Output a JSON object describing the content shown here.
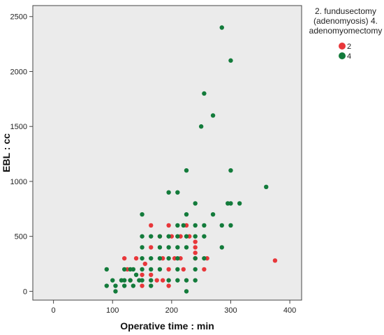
{
  "chart_data": {
    "type": "scatter",
    "xlabel": "Operative time : min",
    "ylabel": "EBL : cc",
    "xlim": [
      -35,
      420
    ],
    "ylim": [
      -80,
      2600
    ],
    "x_ticks": [
      "0",
      "100",
      "200",
      "300",
      "400"
    ],
    "y_ticks": [
      "0",
      "500",
      "1000",
      "1500",
      "2000",
      "2500"
    ],
    "legend": {
      "title": [
        "2. fundusectomy",
        "(adenomyosis) 4.",
        "adenomyomectomy"
      ],
      "position": "top-right outside plot"
    },
    "plot_background": "#ebebeb",
    "grid": false,
    "series": [
      {
        "name": "2",
        "color": "#e8373a",
        "points": [
          [
            120,
            300
          ],
          [
            125,
            200
          ],
          [
            130,
            100
          ],
          [
            140,
            300
          ],
          [
            150,
            50
          ],
          [
            150,
            150
          ],
          [
            155,
            250
          ],
          [
            165,
            600
          ],
          [
            165,
            400
          ],
          [
            165,
            150
          ],
          [
            175,
            100
          ],
          [
            180,
            500
          ],
          [
            185,
            100
          ],
          [
            185,
            300
          ],
          [
            195,
            50
          ],
          [
            195,
            200
          ],
          [
            195,
            600
          ],
          [
            200,
            500
          ],
          [
            205,
            300
          ],
          [
            215,
            300
          ],
          [
            215,
            500
          ],
          [
            220,
            200
          ],
          [
            225,
            600
          ],
          [
            230,
            500
          ],
          [
            240,
            450
          ],
          [
            240,
            400
          ],
          [
            240,
            350
          ],
          [
            240,
            300
          ],
          [
            255,
            200
          ],
          [
            260,
            300
          ],
          [
            375,
            280
          ]
        ]
      },
      {
        "name": "4",
        "color": "#137b3b",
        "points": [
          [
            90,
            200
          ],
          [
            90,
            50
          ],
          [
            100,
            100
          ],
          [
            105,
            50
          ],
          [
            105,
            0
          ],
          [
            115,
            100
          ],
          [
            120,
            100
          ],
          [
            120,
            200
          ],
          [
            120,
            50
          ],
          [
            130,
            200
          ],
          [
            130,
            100
          ],
          [
            135,
            50
          ],
          [
            135,
            200
          ],
          [
            140,
            150
          ],
          [
            145,
            100
          ],
          [
            150,
            700
          ],
          [
            150,
            500
          ],
          [
            150,
            400
          ],
          [
            150,
            300
          ],
          [
            150,
            200
          ],
          [
            150,
            100
          ],
          [
            165,
            500
          ],
          [
            165,
            300
          ],
          [
            165,
            200
          ],
          [
            165,
            100
          ],
          [
            165,
            50
          ],
          [
            180,
            500
          ],
          [
            180,
            400
          ],
          [
            180,
            300
          ],
          [
            180,
            200
          ],
          [
            195,
            900
          ],
          [
            195,
            500
          ],
          [
            195,
            400
          ],
          [
            195,
            300
          ],
          [
            195,
            100
          ],
          [
            210,
            900
          ],
          [
            210,
            600
          ],
          [
            210,
            500
          ],
          [
            210,
            400
          ],
          [
            210,
            300
          ],
          [
            210,
            200
          ],
          [
            210,
            100
          ],
          [
            220,
            600
          ],
          [
            225,
            1100
          ],
          [
            225,
            700
          ],
          [
            225,
            500
          ],
          [
            225,
            400
          ],
          [
            225,
            100
          ],
          [
            225,
            0
          ],
          [
            240,
            800
          ],
          [
            240,
            600
          ],
          [
            240,
            500
          ],
          [
            240,
            300
          ],
          [
            240,
            200
          ],
          [
            240,
            100
          ],
          [
            250,
            1500
          ],
          [
            255,
            1800
          ],
          [
            255,
            600
          ],
          [
            255,
            500
          ],
          [
            255,
            300
          ],
          [
            270,
            1600
          ],
          [
            270,
            700
          ],
          [
            285,
            2400
          ],
          [
            285,
            600
          ],
          [
            285,
            400
          ],
          [
            295,
            800
          ],
          [
            300,
            2100
          ],
          [
            300,
            1100
          ],
          [
            300,
            800
          ],
          [
            300,
            600
          ],
          [
            315,
            800
          ],
          [
            360,
            950
          ]
        ]
      }
    ]
  }
}
